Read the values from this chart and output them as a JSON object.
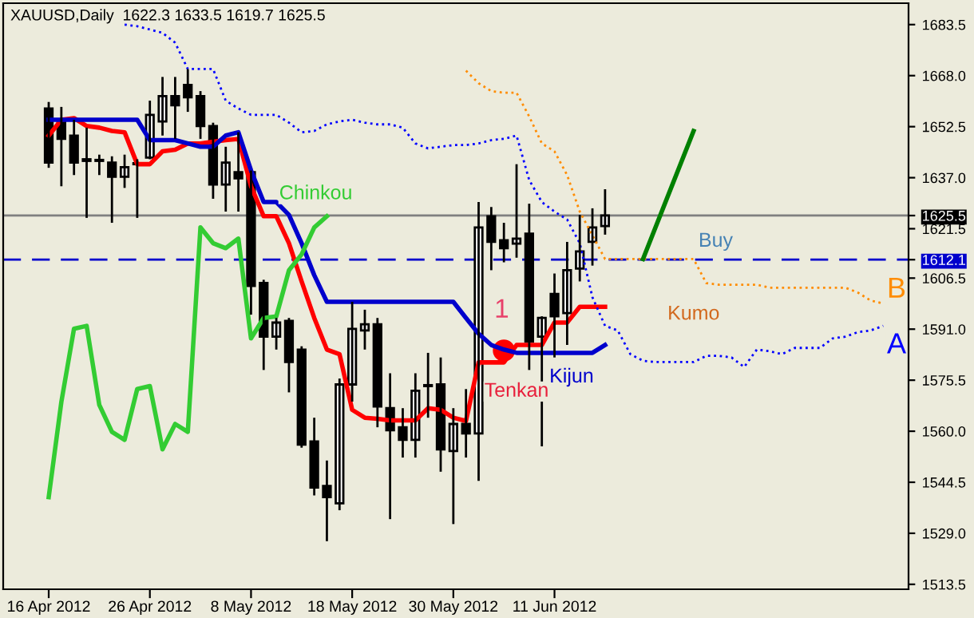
{
  "chart_data": {
    "type": "candlestick",
    "title": "XAUUSD,Daily  1622.3 1633.5 1619.7 1625.5",
    "categories": [
      "16 Apr 2012",
      null,
      null,
      null,
      null,
      null,
      null,
      null,
      "26 Apr 2012",
      null,
      null,
      null,
      null,
      null,
      null,
      null,
      "8 May 2012",
      null,
      null,
      null,
      null,
      null,
      null,
      null,
      "18 May 2012",
      null,
      null,
      null,
      null,
      null,
      null,
      null,
      "30 May 2012",
      null,
      null,
      null,
      null,
      null,
      null,
      null,
      "11 Jun 2012",
      null,
      null,
      null,
      null,
      null,
      null,
      null,
      null,
      null,
      null,
      null,
      null,
      null,
      null,
      null,
      null,
      null,
      null,
      null,
      null,
      null,
      null,
      null,
      null,
      null,
      null
    ],
    "ohlc": [
      [
        1658.0,
        1660.0,
        1640.0,
        1641.6
      ],
      [
        1654.6,
        1658.5,
        1634.4,
        1648.8
      ],
      [
        1649.8,
        1654.6,
        1637.8,
        1641.6
      ],
      [
        1642.1,
        1652.2,
        1624.8,
        1642.6
      ],
      [
        1642.1,
        1644.0,
        1637.8,
        1642.1
      ],
      [
        1641.6,
        1643.5,
        1623.3,
        1637.3
      ],
      [
        1637.3,
        1644.0,
        1633.9,
        1640.2
      ],
      [
        1641.1,
        1642.6,
        1624.8,
        1641.1
      ],
      [
        1643.1,
        1660.4,
        1642.6,
        1656.1
      ],
      [
        1654.1,
        1667.6,
        1649.8,
        1661.8
      ],
      [
        1661.8,
        1667.6,
        1648.8,
        1659.0
      ],
      [
        1665.2,
        1670.0,
        1657.0,
        1661.4
      ],
      [
        1661.8,
        1663.3,
        1648.8,
        1652.7
      ],
      [
        1652.7,
        1653.7,
        1630.6,
        1634.9
      ],
      [
        1634.9,
        1646.4,
        1626.7,
        1641.6
      ],
      [
        1638.7,
        1650.8,
        1626.7,
        1636.8
      ],
      [
        1638.7,
        1639.2,
        1595.4,
        1604.1
      ],
      [
        1605.0,
        1606.0,
        1578.6,
        1588.7
      ],
      [
        1588.7,
        1594.4,
        1584.8,
        1593.0
      ],
      [
        1593.5,
        1594.4,
        1571.8,
        1581.0
      ],
      [
        1584.8,
        1585.8,
        1555.0,
        1555.9
      ],
      [
        1556.9,
        1564.1,
        1540.5,
        1542.9
      ],
      [
        1543.4,
        1551.1,
        1526.6,
        1540.0
      ],
      [
        1538.1,
        1576.0,
        1536.0,
        1574.2
      ],
      [
        1574.2,
        1599.3,
        1569.0,
        1591.1
      ],
      [
        1590.6,
        1596.9,
        1584.8,
        1592.5
      ],
      [
        1592.5,
        1594.4,
        1561.2,
        1567.5
      ],
      [
        1567.0,
        1577.6,
        1533.3,
        1560.3
      ],
      [
        1561.2,
        1567.0,
        1552.0,
        1557.4
      ],
      [
        1557.4,
        1577.6,
        1552.0,
        1572.3
      ],
      [
        1573.7,
        1583.8,
        1564.1,
        1573.7
      ],
      [
        1574.2,
        1582.4,
        1547.7,
        1554.5
      ],
      [
        1554.0,
        1567.0,
        1531.8,
        1562.2
      ],
      [
        1562.2,
        1572.8,
        1552.0,
        1559.3
      ],
      [
        1559.3,
        1629.6,
        1544.9,
        1621.9
      ],
      [
        1625.3,
        1628.1,
        1608.9,
        1617.5
      ],
      [
        1618.0,
        1623.3,
        1611.3,
        1615.6
      ],
      [
        1617.0,
        1641.1,
        1612.7,
        1618.5
      ],
      [
        1620.0,
        1629.1,
        1578.6,
        1587.2
      ],
      [
        1588.7,
        1594.9,
        1555.4,
        1594.4
      ],
      [
        1601.7,
        1607.9,
        1582.4,
        1594.9
      ],
      [
        1595.9,
        1617.5,
        1586.2,
        1608.9
      ],
      [
        1609.4,
        1625.7,
        1605.5,
        1614.6
      ],
      [
        1617.5,
        1627.7,
        1610.3,
        1621.9
      ],
      [
        1622.3,
        1633.5,
        1619.7,
        1625.5
      ],
      null,
      null,
      null,
      null,
      null,
      null,
      null,
      null,
      null,
      null,
      null,
      null,
      null,
      null,
      null,
      null,
      null,
      null,
      null,
      null,
      null,
      null
    ],
    "series": [
      {
        "name": "Tenkan",
        "type": "line",
        "color": "#ff0000",
        "values": [
          1649.8,
          1654.6,
          1655.1,
          1652.7,
          1652.2,
          1651.2,
          1650.8,
          1641.1,
          1641.1,
          1645.0,
          1645.5,
          1647.4,
          1647.4,
          1647.9,
          1648.4,
          1648.8,
          1634.4,
          1625.3,
          1625.3,
          1617.1,
          1605.5,
          1594.4,
          1584.8,
          1583.4,
          1566.5,
          1564.1,
          1563.8,
          1563.3,
          1563.3,
          1563.3,
          1567.0,
          1566.5,
          1564.1,
          1563.1,
          1580.9,
          1580.9,
          1580.9,
          1586.2,
          1586.2,
          1586.2,
          1593.0,
          1593.0,
          1597.8,
          1597.8,
          1597.8,
          null,
          null,
          null,
          null,
          null,
          null,
          null,
          null,
          null,
          null,
          null,
          null,
          null,
          null,
          null,
          null,
          null,
          null,
          null,
          null,
          null,
          null
        ]
      },
      {
        "name": "Kijun",
        "type": "line",
        "color": "#0000cc",
        "values": [
          1654.6,
          1654.6,
          1654.6,
          1654.6,
          1654.6,
          1654.6,
          1654.6,
          1654.6,
          1648.4,
          1648.4,
          1648.4,
          1647.4,
          1646.4,
          1646.4,
          1649.8,
          1650.8,
          1639.2,
          1629.6,
          1629.6,
          1625.7,
          1617.1,
          1607.4,
          1599.3,
          1599.3,
          1599.3,
          1599.3,
          1599.3,
          1599.3,
          1599.3,
          1599.3,
          1599.3,
          1599.3,
          1599.3,
          1594.4,
          1589.6,
          1586.2,
          1584.8,
          1583.8,
          1583.8,
          1583.8,
          1583.8,
          1583.8,
          1583.8,
          1583.8,
          1586.2,
          null,
          null,
          null,
          null,
          null,
          null,
          null,
          null,
          null,
          null,
          null,
          null,
          null,
          null,
          null,
          null,
          null,
          null,
          null,
          null,
          null,
          null
        ]
      },
      {
        "name": "Chinkou",
        "type": "line",
        "color": "#33cc33",
        "values": [
          1540.0,
          1568.9,
          1591.1,
          1592.0,
          1568.0,
          1559.8,
          1557.4,
          1572.8,
          1573.7,
          1554.5,
          1562.2,
          1559.8,
          1621.9,
          1617.1,
          1615.6,
          1618.5,
          1588.2,
          1594.4,
          1594.9,
          1608.9,
          1613.7,
          1621.9,
          1625.3,
          null,
          null,
          null,
          null,
          null,
          null,
          null,
          null,
          null,
          null,
          null,
          null,
          null,
          null,
          null,
          null,
          null,
          null,
          null,
          null,
          null,
          null,
          null,
          null,
          null,
          null,
          null,
          null,
          null,
          null,
          null,
          null,
          null,
          null,
          null,
          null,
          null,
          null,
          null,
          null,
          null,
          null,
          null,
          null
        ]
      },
      {
        "name": "B",
        "type": "line",
        "line_style": "dotted",
        "color": "#ff8c00",
        "values": [
          null,
          null,
          null,
          null,
          null,
          null,
          null,
          null,
          null,
          null,
          null,
          null,
          null,
          null,
          null,
          null,
          null,
          null,
          null,
          null,
          null,
          null,
          null,
          null,
          null,
          null,
          null,
          null,
          null,
          null,
          null,
          null,
          null,
          1669.5,
          1665.7,
          1663.3,
          1662.8,
          1662.8,
          1655.6,
          1647.4,
          1645.0,
          1637.8,
          1626.7,
          1619.5,
          1612.3,
          1612.3,
          1612.3,
          1612.3,
          1612.3,
          1612.3,
          1612.3,
          1612.3,
          1605.0,
          1604.5,
          1604.5,
          1604.5,
          1604.5,
          1603.6,
          1603.6,
          1603.6,
          1603.6,
          1603.6,
          1603.6,
          1603.6,
          1602.1,
          1599.7,
          1598.8
        ]
      },
      {
        "name": "A",
        "type": "line",
        "line_style": "dotted",
        "color": "#0000ff",
        "values": [
          null,
          null,
          null,
          null,
          null,
          null,
          1683.5,
          1683.0,
          1682.0,
          1681.0,
          1678.0,
          1670.0,
          1670.0,
          1670.0,
          1660.4,
          1658.0,
          1656.1,
          1656.1,
          1656.1,
          1653.7,
          1650.8,
          1651.2,
          1653.2,
          1654.1,
          1654.6,
          1653.7,
          1653.2,
          1653.2,
          1652.2,
          1647.4,
          1645.9,
          1646.4,
          1646.9,
          1646.9,
          1647.4,
          1648.4,
          1648.8,
          1649.8,
          1636.3,
          1629.6,
          1626.7,
          1624.3,
          1617.1,
          1600.7,
          1592.0,
          1590.6,
          1583.4,
          1581.4,
          1581.0,
          1581.0,
          1581.0,
          1581.0,
          1582.9,
          1582.9,
          1582.4,
          1579.5,
          1584.8,
          1584.3,
          1583.4,
          1585.3,
          1585.3,
          1585.3,
          1588.2,
          1588.7,
          1590.1,
          1590.6,
          1592.0
        ]
      },
      {
        "type": "line",
        "color": "#008000",
        "values": [
          null,
          null,
          null,
          null,
          null,
          null,
          null,
          null,
          null,
          null,
          null,
          null,
          null,
          null,
          null,
          null,
          null,
          null,
          null,
          null,
          null,
          null,
          null,
          null,
          null,
          null,
          null,
          null,
          null,
          null,
          null,
          null,
          null,
          null,
          null,
          null,
          null,
          null,
          null,
          null,
          null,
          null,
          null,
          null,
          null,
          null,
          null,
          1612.3,
          null,
          null,
          null,
          1651.2,
          null,
          null,
          null,
          null,
          null,
          null,
          null,
          null,
          null,
          null,
          null,
          null,
          null,
          null,
          null
        ]
      },
      {
        "type": "scatter",
        "marker": "circle",
        "color": "#ff0000",
        "values": [
          null,
          null,
          null,
          null,
          null,
          null,
          null,
          null,
          null,
          null,
          null,
          null,
          null,
          null,
          null,
          null,
          null,
          null,
          null,
          null,
          null,
          null,
          null,
          null,
          null,
          null,
          null,
          null,
          null,
          null,
          null,
          null,
          null,
          null,
          null,
          null,
          1584.5,
          null,
          null,
          null,
          null,
          null,
          null,
          null,
          null,
          null,
          null,
          null,
          null,
          null,
          null,
          null,
          null,
          null,
          null,
          null,
          null,
          null,
          null,
          null,
          null,
          null,
          null,
          null,
          null,
          null,
          null
        ]
      }
    ],
    "ylim": [
      1512,
      1690
    ],
    "yticks": [
      1683.5,
      {
        "value": 1668,
        "label": "1668.0"
      },
      1652.5,
      {
        "value": 1637,
        "label": "1637.0"
      },
      1625.5,
      1621.5,
      1612.1,
      1606.5,
      {
        "value": 1591,
        "label": "1591.0"
      },
      1575.5,
      {
        "value": 1560,
        "label": "1560.0"
      },
      1544.5,
      {
        "value": 1529,
        "label": "1529.0"
      },
      1513.5
    ],
    "ref_lines": [
      {
        "axis": "y",
        "value": 1625.5,
        "color": "#808080",
        "line_style": "solid"
      },
      {
        "axis": "y",
        "value": 1612.1,
        "label": "Buy",
        "color": "#0000cc",
        "line_style": "dashed"
      }
    ],
    "annotations": [
      "1",
      "Kumo"
    ],
    "grid": false,
    "legend": false
  }
}
